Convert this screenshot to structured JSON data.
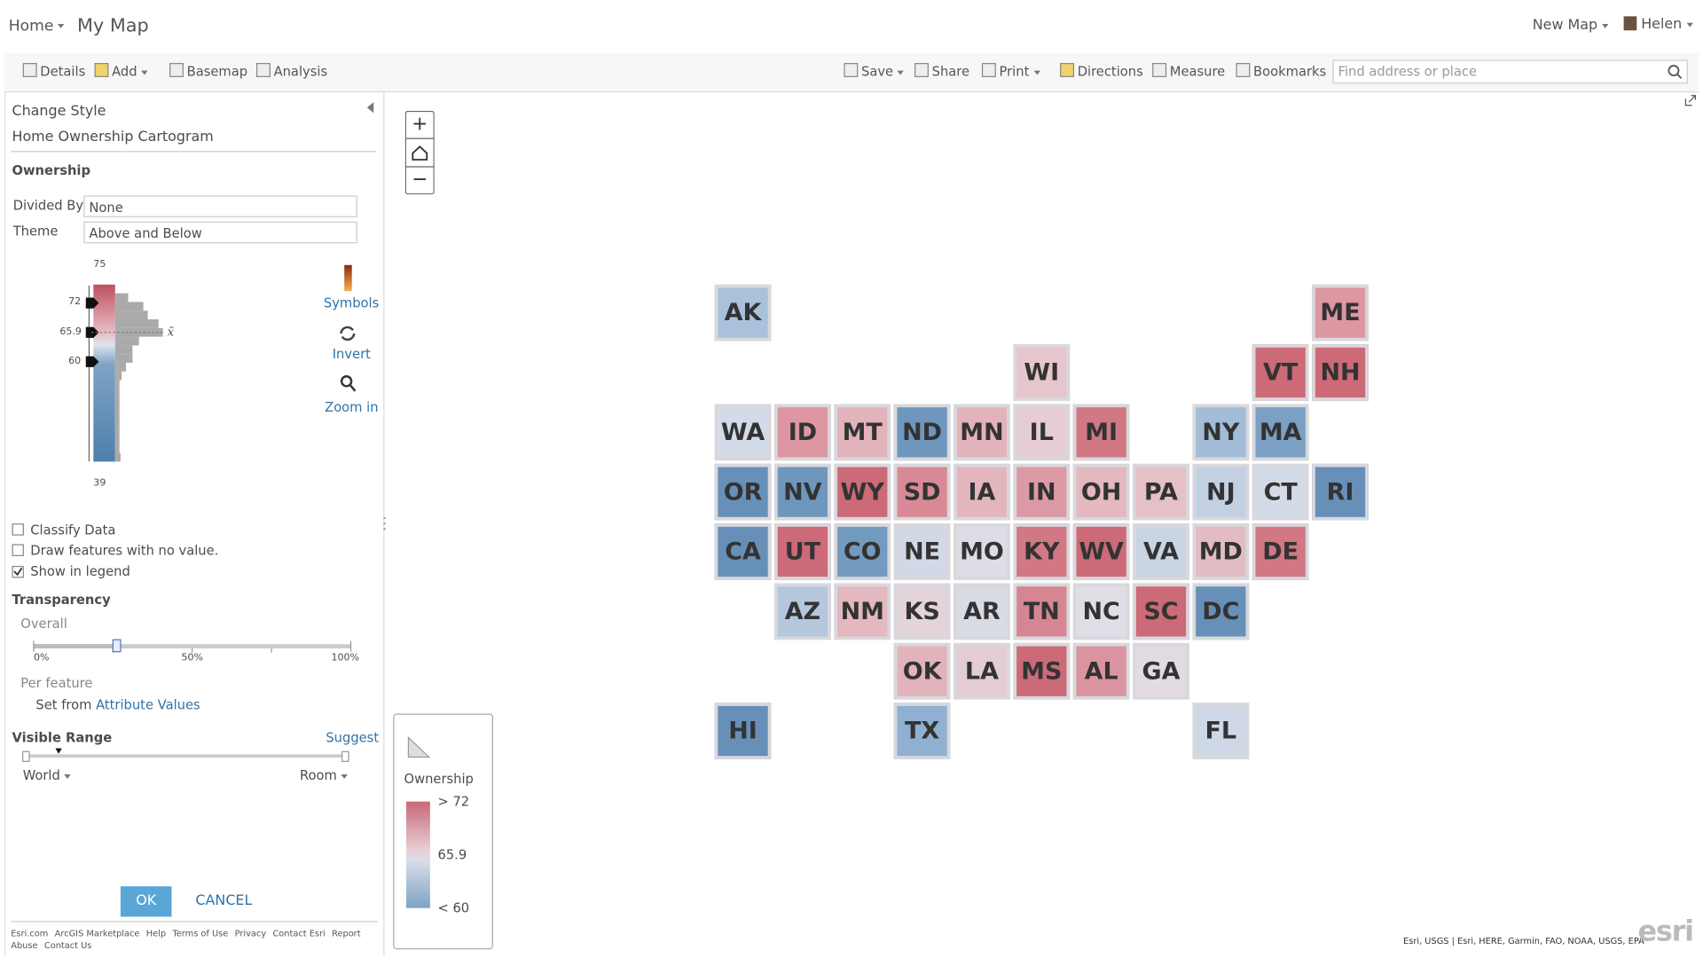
{
  "header": {
    "home": "Home",
    "title": "My Map",
    "new_map": "New Map",
    "user": "Helen"
  },
  "toolbar": {
    "left": [
      "Details",
      "Add",
      "Basemap",
      "Analysis"
    ],
    "right": [
      "Save",
      "Share",
      "Print",
      "Directions",
      "Measure",
      "Bookmarks"
    ],
    "search_placeholder": "Find address or place"
  },
  "panel": {
    "heading": "Change Style",
    "layer": "Home Ownership Cartogram",
    "attribute": "Ownership",
    "divided_by_label": "Divided By:",
    "divided_by_value": "None",
    "theme_label": "Theme",
    "theme_value": "Above and Below",
    "histogram": {
      "max": "75",
      "high": "72",
      "mean": "65.9",
      "low": "60",
      "min": "39",
      "mean_symbol": "x̄"
    },
    "tools": [
      "Symbols",
      "Invert",
      "Zoom in"
    ],
    "checkboxes": [
      {
        "label": "Classify Data",
        "checked": false
      },
      {
        "label": "Draw features with no value.",
        "checked": false
      },
      {
        "label": "Show in legend",
        "checked": true
      }
    ],
    "transparency": {
      "title": "Transparency",
      "overall": "Overall",
      "ticks": [
        "0%",
        "50%",
        "100%"
      ],
      "per_feature": "Per feature",
      "set_from": "Set from",
      "attribute_values": "Attribute Values"
    },
    "visible_range": {
      "title": "Visible Range",
      "suggest": "Suggest",
      "min": "World",
      "max": "Room"
    },
    "ok": "OK",
    "cancel": "CANCEL",
    "footer": [
      "Esri.com",
      "ArcGIS Marketplace",
      "Help",
      "Terms of Use",
      "Privacy",
      "Contact Esri",
      "Report Abuse",
      "Contact Us"
    ]
  },
  "legend": {
    "title": "Ownership",
    "labels": [
      "> 72",
      "65.9",
      "< 60"
    ]
  },
  "map": {
    "tiles": [
      {
        "label": "AK",
        "color": "#a9c1db"
      },
      {
        "label": "ME",
        "color": "#dc97a2"
      },
      {
        "label": "WI",
        "color": "#e6c6cc"
      },
      {
        "label": "VT",
        "color": "#cd6a78"
      },
      {
        "label": "NH",
        "color": "#cd6a78"
      },
      {
        "label": "WA",
        "color": "#d4dbe8"
      },
      {
        "label": "ID",
        "color": "#dc97a2"
      },
      {
        "label": "MT",
        "color": "#e3b3bb"
      },
      {
        "label": "ND",
        "color": "#6f97bd"
      },
      {
        "label": "MN",
        "color": "#e3b3bb"
      },
      {
        "label": "IL",
        "color": "#e6cdd3"
      },
      {
        "label": "MI",
        "color": "#d17884"
      },
      {
        "label": "NY",
        "color": "#a3bcd7"
      },
      {
        "label": "MA",
        "color": "#7aa0c3"
      },
      {
        "label": "OR",
        "color": "#6790b8"
      },
      {
        "label": "NV",
        "color": "#6f97bd"
      },
      {
        "label": "WY",
        "color": "#cd6a78"
      },
      {
        "label": "SD",
        "color": "#d98a96"
      },
      {
        "label": "IA",
        "color": "#e3b6be"
      },
      {
        "label": "IN",
        "color": "#dc9aa5"
      },
      {
        "label": "OH",
        "color": "#e3b8bf"
      },
      {
        "label": "PA",
        "color": "#e6c0c7"
      },
      {
        "label": "NJ",
        "color": "#c3d0e2"
      },
      {
        "label": "CT",
        "color": "#d4dbe8"
      },
      {
        "label": "RI",
        "color": "#6790b8"
      },
      {
        "label": "CA",
        "color": "#6790b8"
      },
      {
        "label": "UT",
        "color": "#cd6a78"
      },
      {
        "label": "CO",
        "color": "#739bbf"
      },
      {
        "label": "NE",
        "color": "#d2d8e5"
      },
      {
        "label": "MO",
        "color": "#dddde5"
      },
      {
        "label": "KY",
        "color": "#d17884"
      },
      {
        "label": "WV",
        "color": "#cd6a78"
      },
      {
        "label": "VA",
        "color": "#c9d4e4"
      },
      {
        "label": "MD",
        "color": "#e3bcc3"
      },
      {
        "label": "DE",
        "color": "#d17884"
      },
      {
        "label": "AZ",
        "color": "#b5c7dd"
      },
      {
        "label": "NM",
        "color": "#e3b8bf"
      },
      {
        "label": "KS",
        "color": "#e3d4da"
      },
      {
        "label": "AR",
        "color": "#d9dbe4"
      },
      {
        "label": "TN",
        "color": "#d68693"
      },
      {
        "label": "NC",
        "color": "#dfdde5"
      },
      {
        "label": "SC",
        "color": "#cd6a78"
      },
      {
        "label": "DC",
        "color": "#6790b8"
      },
      {
        "label": "OK",
        "color": "#e3b3bb"
      },
      {
        "label": "LA",
        "color": "#e3ccd3"
      },
      {
        "label": "MS",
        "color": "#cd6a78"
      },
      {
        "label": "AL",
        "color": "#da94a0"
      },
      {
        "label": "GA",
        "color": "#e3dbe2"
      },
      {
        "label": "HI",
        "color": "#6790b8"
      },
      {
        "label": "TX",
        "color": "#8fb0d0"
      },
      {
        "label": "FL",
        "color": "#cfd8e6"
      }
    ]
  },
  "attribution": "Esri, USGS | Esri, HERE, Garmin, FAO, NOAA, USGS, EPA",
  "logo": "esri"
}
